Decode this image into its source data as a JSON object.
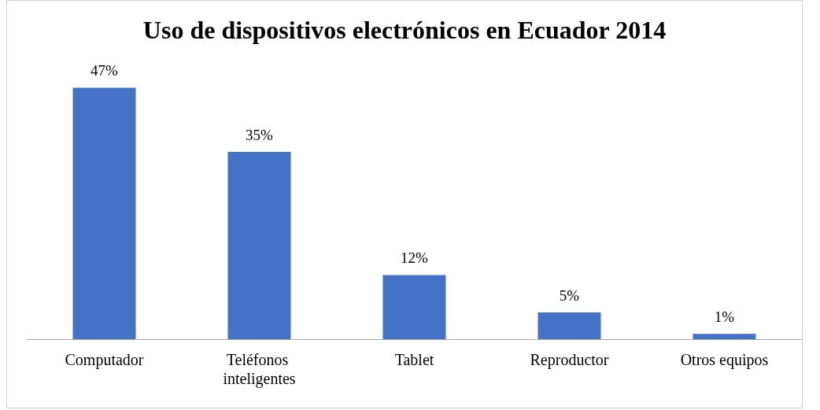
{
  "chart_data": {
    "type": "bar",
    "title": "Uso de dispositivos electrónicos en Ecuador 2014",
    "categories": [
      "Computador",
      "Teléfonos inteligentes",
      "Tablet",
      "Reproductor",
      "Otros equipos"
    ],
    "values": [
      47,
      35,
      12,
      5,
      1
    ],
    "value_labels": [
      "47%",
      "35%",
      "12%",
      "5%",
      "1%"
    ],
    "color": "#4472c4"
  }
}
